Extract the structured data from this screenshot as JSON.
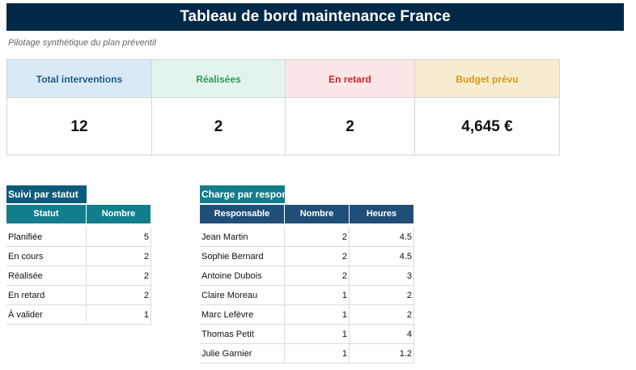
{
  "header": {
    "title": "Tableau de bord maintenance France",
    "subtitle": "Pilotage synthétique du plan préventif"
  },
  "kpis": [
    {
      "label": "Total interventions",
      "value": 12
    },
    {
      "label": "Réalisées",
      "value": 2
    },
    {
      "label": "En retard",
      "value": 2
    },
    {
      "label": "Budget prévu",
      "value": "4,645 €"
    }
  ],
  "status_table": {
    "title": "Suivi par statut",
    "headers": [
      "Statut",
      "Nombre"
    ],
    "rows": [
      [
        "Planifiée",
        5
      ],
      [
        "En cours",
        2
      ],
      [
        "Réalisée",
        2
      ],
      [
        "En retard",
        2
      ],
      [
        "À valider",
        1
      ]
    ]
  },
  "charge_table": {
    "title": "Charge par responsable",
    "headers": [
      "Responsable",
      "Nombre",
      "Heures"
    ],
    "rows": [
      [
        "Jean Martin",
        2,
        4.5
      ],
      [
        "Sophie Bernard",
        2,
        4.5
      ],
      [
        "Antoine Dubois",
        2,
        3
      ],
      [
        "Claire Moreau",
        1,
        2
      ],
      [
        "Marc Lefèvre",
        1,
        2
      ],
      [
        "Thomas Petit",
        1,
        4
      ],
      [
        "Julie Garnier",
        1,
        1.2
      ]
    ]
  }
}
